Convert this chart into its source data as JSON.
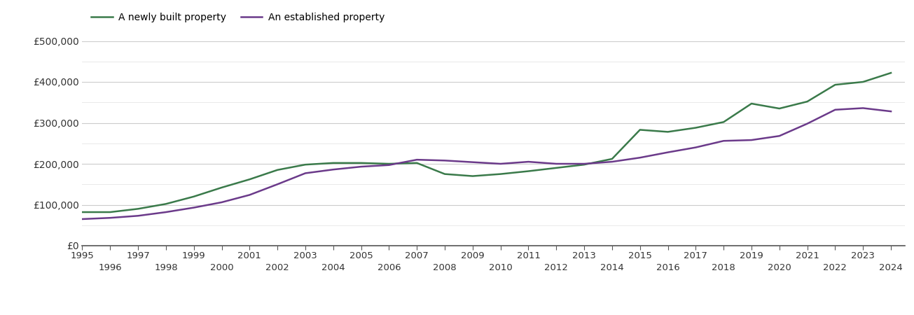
{
  "years": [
    1995,
    1996,
    1997,
    1998,
    1999,
    2000,
    2001,
    2002,
    2003,
    2004,
    2005,
    2006,
    2007,
    2008,
    2009,
    2010,
    2011,
    2012,
    2013,
    2014,
    2015,
    2016,
    2017,
    2018,
    2019,
    2020,
    2021,
    2022,
    2023,
    2024
  ],
  "new_build": [
    82000,
    82000,
    90000,
    102000,
    120000,
    142000,
    162000,
    185000,
    198000,
    202000,
    202000,
    200000,
    202000,
    175000,
    170000,
    175000,
    182000,
    190000,
    198000,
    212000,
    283000,
    278000,
    288000,
    302000,
    347000,
    335000,
    352000,
    393000,
    400000,
    422000
  ],
  "established": [
    65000,
    68000,
    73000,
    82000,
    93000,
    106000,
    124000,
    150000,
    177000,
    186000,
    193000,
    197000,
    210000,
    208000,
    204000,
    200000,
    205000,
    200000,
    200000,
    205000,
    215000,
    228000,
    240000,
    256000,
    258000,
    268000,
    298000,
    332000,
    336000,
    328000
  ],
  "new_color": "#3a7a4a",
  "established_color": "#6b3a8a",
  "new_label": "A newly built property",
  "established_label": "An established property",
  "ylim": [
    0,
    500000
  ],
  "yticks": [
    0,
    100000,
    200000,
    300000,
    400000,
    500000
  ],
  "ytick_labels": [
    "£0",
    "£100,000",
    "£200,000",
    "£300,000",
    "£400,000",
    "£500,000"
  ],
  "background_color": "#ffffff",
  "grid_color": "#cccccc",
  "minor_grid_color": "#e5e5e5",
  "line_width": 1.8,
  "xlim_left": 1995,
  "xlim_right": 2024.5
}
